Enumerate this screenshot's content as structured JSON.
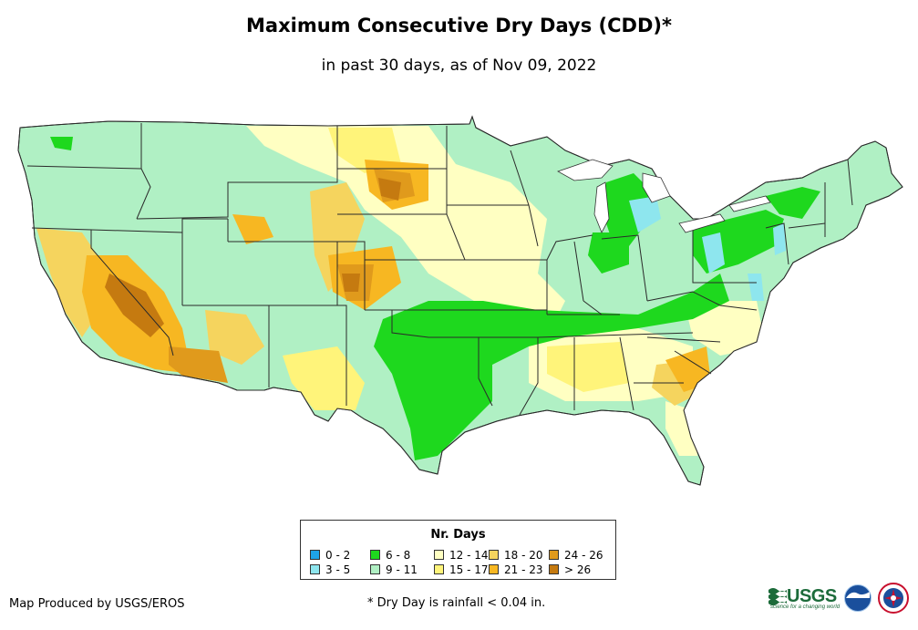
{
  "header": {
    "title": "Maximum Consecutive Dry Days (CDD)*",
    "subtitle": "in past 30 days, as of Nov 09, 2022"
  },
  "map": {
    "region": "Contiguous United States",
    "color_key": {
      "cat_0_2": "#1ea3e8",
      "cat_3_5": "#8ee6ee",
      "cat_6_8": "#1ed81e",
      "cat_9_11": "#b0f0c4",
      "cat_12_14": "#ffffc2",
      "cat_15_17": "#fff47a",
      "cat_18_20": "#f5d45e",
      "cat_21_23": "#f7b722",
      "cat_24_26": "#e09a1c",
      "cat_gt_26": "#c57a10",
      "state_border": "#2a2a2a",
      "county_border": "#5a8a6a"
    }
  },
  "legend": {
    "title": "Nr. Days",
    "items": [
      {
        "label": "0 - 2",
        "color": "#1ea3e8"
      },
      {
        "label": "3 - 5",
        "color": "#8ee6ee"
      },
      {
        "label": "6 - 8",
        "color": "#1ed81e"
      },
      {
        "label": "9 - 11",
        "color": "#b0f0c4"
      },
      {
        "label": "12 - 14",
        "color": "#ffffc2"
      },
      {
        "label": "15 - 17",
        "color": "#fff47a"
      },
      {
        "label": "18 - 20",
        "color": "#f5d45e"
      },
      {
        "label": "21 - 23",
        "color": "#f7b722"
      },
      {
        "label": "24 - 26",
        "color": "#e09a1c"
      },
      {
        "label": "> 26",
        "color": "#c57a10"
      }
    ]
  },
  "footer": {
    "credit": "Map Produced by USGS/EROS",
    "footnote": "* Dry Day is rainfall < 0.04 in.",
    "usgs_logo_text": "USGS",
    "usgs_tagline": "science for a changing world"
  },
  "logos": {
    "usgs": "usgs-logo-icon",
    "noaa": "noaa-logo-icon",
    "nws": "nws-logo-icon"
  }
}
